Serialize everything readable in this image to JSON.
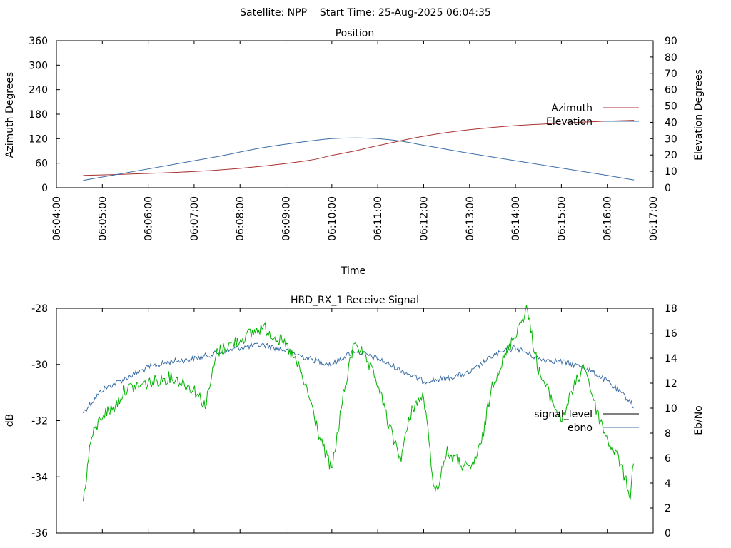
{
  "header": {
    "title": "Satellite: NPP    Start Time: 25-Aug-2025 06:04:35"
  },
  "chart_data": [
    {
      "type": "line",
      "title": "Position",
      "xlabel": "Time",
      "ylabel": "Azimuth Degrees",
      "y2label": "Elevation Degrees",
      "xticks": [
        "06:04:00",
        "06:05:00",
        "06:06:00",
        "06:07:00",
        "06:08:00",
        "06:09:00",
        "06:10:00",
        "06:11:00",
        "06:12:00",
        "06:13:00",
        "06:14:00",
        "06:15:00",
        "06:16:00",
        "06:17:00"
      ],
      "xlim": [
        "06:04:00",
        "06:17:00"
      ],
      "ylim": [
        0,
        360
      ],
      "y2lim": [
        0,
        90
      ],
      "yticks": [
        "0",
        "60",
        "120",
        "180",
        "240",
        "300",
        "360"
      ],
      "y2ticks": [
        "0",
        "10",
        "20",
        "30",
        "40",
        "50",
        "60",
        "70",
        "80",
        "90"
      ],
      "legend_position": "right",
      "grid": false,
      "series": [
        {
          "name": "Azimuth",
          "axis": "y",
          "color": "#a83232",
          "x": [
            "06:04:35",
            "06:05:30",
            "06:06:30",
            "06:07:30",
            "06:08:30",
            "06:09:30",
            "06:10:00",
            "06:10:30",
            "06:11:00",
            "06:11:30",
            "06:12:00",
            "06:12:30",
            "06:13:00",
            "06:14:00",
            "06:15:00",
            "06:16:00",
            "06:16:35"
          ],
          "y": [
            30,
            33,
            37,
            43,
            53,
            67,
            79,
            90,
            103,
            115,
            126,
            135,
            142,
            152,
            158,
            163,
            165
          ]
        },
        {
          "name": "Elevation",
          "axis": "y2",
          "color": "#3c6ea5",
          "x": [
            "06:04:35",
            "06:05:30",
            "06:06:30",
            "06:07:30",
            "06:08:30",
            "06:09:30",
            "06:10:00",
            "06:10:30",
            "06:11:00",
            "06:11:30",
            "06:12:00",
            "06:12:30",
            "06:13:00",
            "06:14:00",
            "06:15:00",
            "06:16:00",
            "06:16:35"
          ],
          "y": [
            4.5,
            9,
            14,
            19,
            24.5,
            28.5,
            30,
            30.5,
            30,
            28.5,
            26,
            23.5,
            21,
            16.5,
            12,
            7.5,
            4.7
          ]
        }
      ]
    },
    {
      "type": "line",
      "title": "HRD_RX_1 Receive Signal",
      "xlabel": "",
      "ylabel": "dB",
      "y2label": "Eb/No",
      "xlim": [
        "06:04:00",
        "06:17:00"
      ],
      "ylim": [
        -36,
        -28
      ],
      "y2lim": [
        0,
        18
      ],
      "yticks": [
        "-36",
        "-34",
        "-32",
        "-30",
        "-28"
      ],
      "y2ticks": [
        "0",
        "2",
        "4",
        "6",
        "8",
        "10",
        "12",
        "14",
        "16",
        "18"
      ],
      "legend_position": "right",
      "grid": false,
      "series": [
        {
          "name": "signal_level",
          "axis": "y",
          "legend_color": "#000000",
          "color": "#3c6ea5",
          "x": [
            "06:04:35",
            "06:05:00",
            "06:05:30",
            "06:06:00",
            "06:06:30",
            "06:07:00",
            "06:07:30",
            "06:08:00",
            "06:08:30",
            "06:09:00",
            "06:09:30",
            "06:10:00",
            "06:10:30",
            "06:11:00",
            "06:11:30",
            "06:12:00",
            "06:12:30",
            "06:13:00",
            "06:13:30",
            "06:14:00",
            "06:14:30",
            "06:15:00",
            "06:15:30",
            "06:16:00",
            "06:16:30",
            "06:16:35"
          ],
          "y": [
            -31.7,
            -30.9,
            -30.5,
            -30.1,
            -29.9,
            -29.8,
            -29.6,
            -29.4,
            -29.3,
            -29.5,
            -29.8,
            -30.0,
            -29.5,
            -29.8,
            -30.2,
            -30.6,
            -30.5,
            -30.3,
            -29.7,
            -29.4,
            -29.8,
            -29.9,
            -30.1,
            -30.6,
            -31.3,
            -31.6
          ]
        },
        {
          "name": "ebno",
          "axis": "y2",
          "legend_color": "#3c6ea5",
          "color": "#00b400",
          "x": [
            "06:04:35",
            "06:04:45",
            "06:05:00",
            "06:05:15",
            "06:05:30",
            "06:06:00",
            "06:06:30",
            "06:07:00",
            "06:07:15",
            "06:07:30",
            "06:08:00",
            "06:08:30",
            "06:09:00",
            "06:09:15",
            "06:09:30",
            "06:09:45",
            "06:10:00",
            "06:10:15",
            "06:10:30",
            "06:11:00",
            "06:11:15",
            "06:11:30",
            "06:11:45",
            "06:12:00",
            "06:12:15",
            "06:12:30",
            "06:13:00",
            "06:13:15",
            "06:13:30",
            "06:14:00",
            "06:14:15",
            "06:14:30",
            "06:15:00",
            "06:15:15",
            "06:15:30",
            "06:15:45",
            "06:16:00",
            "06:16:15",
            "06:16:30",
            "06:16:35"
          ],
          "y": [
            2.5,
            7.5,
            9.5,
            10,
            11.5,
            12,
            12.5,
            11.5,
            10.2,
            14.5,
            15.5,
            16.5,
            15,
            13.5,
            11,
            7.5,
            5,
            11,
            15.5,
            12,
            8.5,
            6,
            10,
            11,
            3,
            6.5,
            5,
            7,
            12,
            16,
            18,
            13,
            9,
            11.5,
            13.5,
            10,
            7.5,
            6,
            3,
            6
          ]
        }
      ]
    }
  ]
}
